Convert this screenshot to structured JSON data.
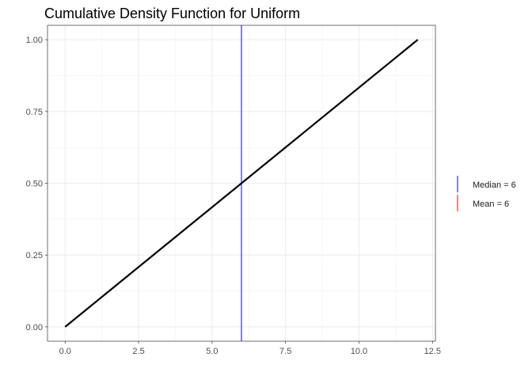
{
  "chart_data": {
    "type": "line",
    "title": "Cumulative Density Function for Uniform",
    "xlabel": "",
    "ylabel": "",
    "xlim": [
      -0.6,
      12.6
    ],
    "ylim": [
      -0.05,
      1.05
    ],
    "x_ticks": [
      0.0,
      2.5,
      5.0,
      7.5,
      10.0,
      12.5
    ],
    "x_tick_labels": [
      "0.0",
      "2.5",
      "5.0",
      "7.5",
      "10.0",
      "12.5"
    ],
    "y_ticks": [
      0.0,
      0.25,
      0.5,
      0.75,
      1.0
    ],
    "y_tick_labels": [
      "0.00",
      "0.25",
      "0.50",
      "0.75",
      "1.00"
    ],
    "grid": true,
    "series": [
      {
        "x": [
          0,
          12
        ],
        "y": [
          0,
          1
        ],
        "color": "#000000"
      }
    ],
    "vlines": [
      {
        "x": 6,
        "color": "#0000ff"
      },
      {
        "x": 6,
        "color": "#ff0000"
      }
    ],
    "legend": {
      "position": "right",
      "entries": [
        {
          "label": "Median = 6",
          "color": "#0000ff"
        },
        {
          "label": "Mean = 6",
          "color": "#ff0000"
        }
      ]
    }
  }
}
